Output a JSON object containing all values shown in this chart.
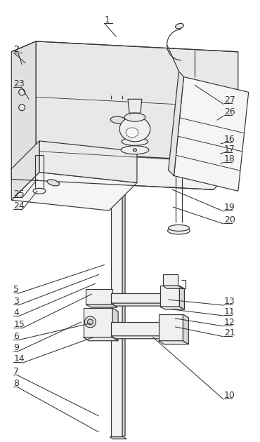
{
  "bg_color": "#ffffff",
  "line_color": "#333333",
  "lw": 0.85,
  "label_fs": 9,
  "left_labels": [
    [
      "8",
      18,
      75,
      140,
      12
    ],
    [
      "7",
      18,
      92,
      140,
      35
    ],
    [
      "14",
      18,
      110,
      132,
      148
    ],
    [
      "9",
      18,
      127,
      115,
      170
    ],
    [
      "6",
      18,
      143,
      128,
      168
    ],
    [
      "15",
      18,
      160,
      130,
      210
    ],
    [
      "4",
      18,
      177,
      135,
      225
    ],
    [
      "3",
      18,
      193,
      140,
      238
    ],
    [
      "5",
      18,
      210,
      148,
      252
    ],
    [
      "24",
      18,
      330,
      52,
      358
    ],
    [
      "25",
      18,
      347,
      52,
      375
    ],
    [
      "23",
      18,
      505,
      40,
      490
    ],
    [
      "2",
      18,
      555,
      30,
      540
    ]
  ],
  "right_labels": [
    [
      "10",
      320,
      58,
      218,
      148
    ],
    [
      "21",
      320,
      148,
      250,
      163
    ],
    [
      "12",
      320,
      163,
      250,
      175
    ],
    [
      "11",
      320,
      178,
      246,
      188
    ],
    [
      "13",
      320,
      193,
      240,
      202
    ],
    [
      "20",
      320,
      310,
      247,
      335
    ],
    [
      "19",
      320,
      328,
      246,
      360
    ],
    [
      "18",
      320,
      398,
      315,
      398
    ],
    [
      "17",
      320,
      412,
      315,
      412
    ],
    [
      "16",
      320,
      426,
      315,
      426
    ],
    [
      "26",
      320,
      465,
      310,
      460
    ],
    [
      "27",
      320,
      482,
      278,
      510
    ]
  ],
  "bottom_labels": [
    [
      "1",
      148,
      597,
      155,
      582
    ],
    [
      "2",
      18,
      555,
      30,
      540
    ]
  ]
}
